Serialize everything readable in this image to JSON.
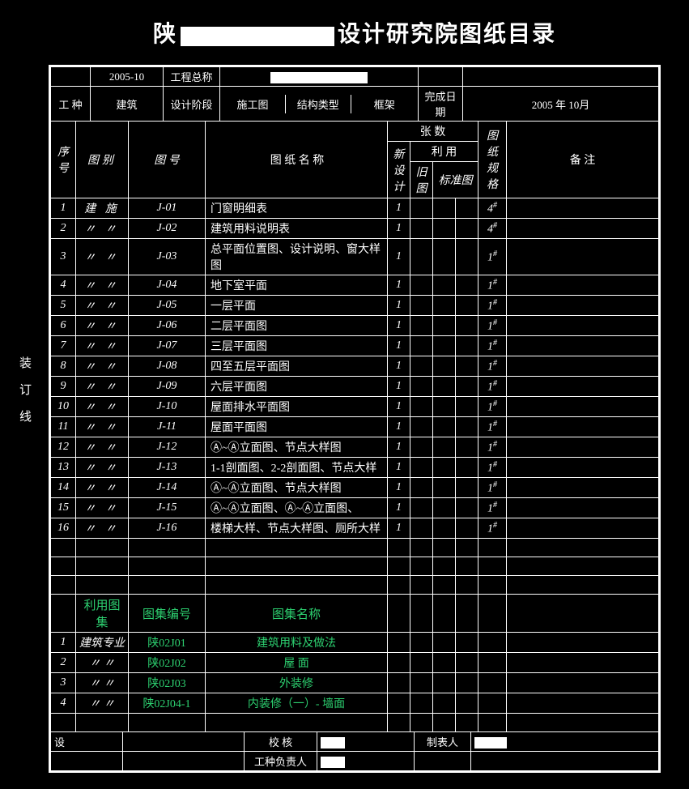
{
  "title_suffix": "设计研究院图纸目录",
  "side_label": "装订线",
  "meta": {
    "row1": {
      "c1": "",
      "c2": "2005-10",
      "c3_label": "工程总称",
      "c3_val": "",
      "c5_label": "",
      "c5_val": ""
    },
    "row2": {
      "c1_label": "工  种",
      "c1_val": "建筑",
      "c2_label": "设计阶段",
      "c2_val": "施工图",
      "c3_label": "结构类型",
      "c3_val": "框架",
      "c4_label": "完成日期",
      "c4_val": "2005 年  10月"
    }
  },
  "header": {
    "seq": "序号",
    "category": "图别",
    "number": "图  号",
    "name": "图  纸  名  称",
    "sheets": "张    数",
    "sheets_sub": [
      "新设计",
      "利  用"
    ],
    "sheets_sub2": [
      "旧图",
      "标准图"
    ],
    "spec": "图纸规格",
    "remark": "备    注"
  },
  "rows": [
    {
      "i": "1",
      "cat": "建 施",
      "num": "J-01",
      "name": "门窗明细表",
      "z1": "1",
      "z2": "",
      "z3": "",
      "z4": "",
      "spec": "4#"
    },
    {
      "i": "2",
      "cat": "〃 〃",
      "num": "J-02",
      "name": "建筑用料说明表",
      "z1": "1",
      "z2": "",
      "z3": "",
      "z4": "",
      "spec": "4#"
    },
    {
      "i": "3",
      "cat": "〃 〃",
      "num": "J-03",
      "name": "总平面位置图、设计说明、窗大样图",
      "z1": "1",
      "z2": "",
      "z3": "",
      "z4": "",
      "spec": "1#"
    },
    {
      "i": "4",
      "cat": "〃 〃",
      "num": "J-04",
      "name": "地下室平面",
      "z1": "1",
      "z2": "",
      "z3": "",
      "z4": "",
      "spec": "1#"
    },
    {
      "i": "5",
      "cat": "〃 〃",
      "num": "J-05",
      "name": "一层平面",
      "z1": "1",
      "z2": "",
      "z3": "",
      "z4": "",
      "spec": "1#"
    },
    {
      "i": "6",
      "cat": "〃 〃",
      "num": "J-06",
      "name": "二层平面图",
      "z1": "1",
      "z2": "",
      "z3": "",
      "z4": "",
      "spec": "1#"
    },
    {
      "i": "7",
      "cat": "〃 〃",
      "num": "J-07",
      "name": "三层平面图",
      "z1": "1",
      "z2": "",
      "z3": "",
      "z4": "",
      "spec": "1#"
    },
    {
      "i": "8",
      "cat": "〃 〃",
      "num": "J-08",
      "name": "四至五层平面图",
      "z1": "1",
      "z2": "",
      "z3": "",
      "z4": "",
      "spec": "1#"
    },
    {
      "i": "9",
      "cat": "〃 〃",
      "num": "J-09",
      "name": "六层平面图",
      "z1": "1",
      "z2": "",
      "z3": "",
      "z4": "",
      "spec": "1#"
    },
    {
      "i": "10",
      "cat": "〃 〃",
      "num": "J-10",
      "name": "屋面排水平面图",
      "z1": "1",
      "z2": "",
      "z3": "",
      "z4": "",
      "spec": "1#"
    },
    {
      "i": "11",
      "cat": "〃 〃",
      "num": "J-11",
      "name": "屋面平面图",
      "z1": "1",
      "z2": "",
      "z3": "",
      "z4": "",
      "spec": "1#"
    },
    {
      "i": "12",
      "cat": "〃 〃",
      "num": "J-12",
      "name": "Ⓐ~Ⓐ立面图、节点大样图",
      "z1": "1",
      "z2": "",
      "z3": "",
      "z4": "",
      "spec": "1#"
    },
    {
      "i": "13",
      "cat": "〃 〃",
      "num": "J-13",
      "name": "1-1剖面图、2-2剖面图、节点大样",
      "z1": "1",
      "z2": "",
      "z3": "",
      "z4": "",
      "spec": "1#"
    },
    {
      "i": "14",
      "cat": "〃 〃",
      "num": "J-14",
      "name": "Ⓐ~Ⓐ立面图、节点大样图",
      "z1": "1",
      "z2": "",
      "z3": "",
      "z4": "",
      "spec": "1#"
    },
    {
      "i": "15",
      "cat": "〃 〃",
      "num": "J-15",
      "name": "Ⓐ~Ⓐ立面图、Ⓐ~Ⓐ立面图、",
      "z1": "1",
      "z2": "",
      "z3": "",
      "z4": "",
      "spec": "1#"
    },
    {
      "i": "16",
      "cat": "〃 〃",
      "num": "J-16",
      "name": "楼梯大样、节点大样图、厕所大样",
      "z1": "1",
      "z2": "",
      "z3": "",
      "z4": "",
      "spec": "1#"
    }
  ],
  "atlas_header": {
    "c1": "",
    "c2": "利用图集",
    "c3": "图集编号",
    "c4": "图集名称"
  },
  "atlas": [
    {
      "i": "1",
      "cat": "建筑专业",
      "num": "陕02J01",
      "name": "建筑用料及做法"
    },
    {
      "i": "2",
      "cat": "〃 〃",
      "num": "陕02J02",
      "name": "屋  面"
    },
    {
      "i": "3",
      "cat": "〃 〃",
      "num": "陕02J03",
      "name": "外装修"
    },
    {
      "i": "4",
      "cat": "〃 〃",
      "num": "陕02J04-1",
      "name": "内装修（一）- 墙面"
    }
  ],
  "footer": {
    "r1": {
      "c1": "设",
      "c2": "",
      "c3": "校  核",
      "c4": "",
      "c5": "制表人",
      "c6": ""
    },
    "r2": {
      "c1": "",
      "c2": "",
      "c3": "工种负责人",
      "c4": "",
      "c5": "",
      "c6": ""
    }
  }
}
